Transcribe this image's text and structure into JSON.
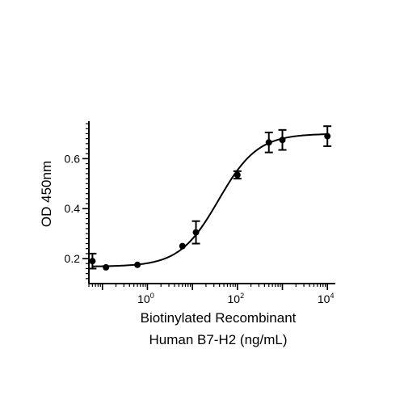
{
  "chart_data": {
    "type": "scatter",
    "title": "",
    "xlabel_lines": [
      "Biotinylated Recombinant",
      "Human B7-H2 (ng/mL)"
    ],
    "ylabel": "OD 450nm",
    "x_scale": "log",
    "xlim": [
      0.05,
      15000
    ],
    "ylim": [
      0.1,
      0.75
    ],
    "x_ticks": [
      {
        "value": 1,
        "base": "10",
        "exp": "0"
      },
      {
        "value": 100,
        "base": "10",
        "exp": "2"
      },
      {
        "value": 10000,
        "base": "10",
        "exp": "4"
      }
    ],
    "y_ticks": [
      {
        "value": 0.2,
        "label": "0.2"
      },
      {
        "value": 0.4,
        "label": "0.4"
      },
      {
        "value": 0.6,
        "label": "0.6"
      }
    ],
    "series": [
      {
        "points": [
          {
            "x": 0.06,
            "y": 0.19,
            "err": 0.03
          },
          {
            "x": 0.12,
            "y": 0.165,
            "err": 0
          },
          {
            "x": 0.6,
            "y": 0.175,
            "err": 0
          },
          {
            "x": 6,
            "y": 0.25,
            "err": 0
          },
          {
            "x": 12,
            "y": 0.305,
            "err": 0.045
          },
          {
            "x": 100,
            "y": 0.535,
            "err": 0.015
          },
          {
            "x": 500,
            "y": 0.665,
            "err": 0.04
          },
          {
            "x": 1000,
            "y": 0.675,
            "err": 0.04
          },
          {
            "x": 10000,
            "y": 0.69,
            "err": 0.04
          }
        ],
        "fit": {
          "model": "4PL",
          "bottom": 0.168,
          "top": 0.7,
          "ec50": 38,
          "hill": 1.0
        }
      }
    ],
    "grid": false,
    "legend": "none"
  }
}
